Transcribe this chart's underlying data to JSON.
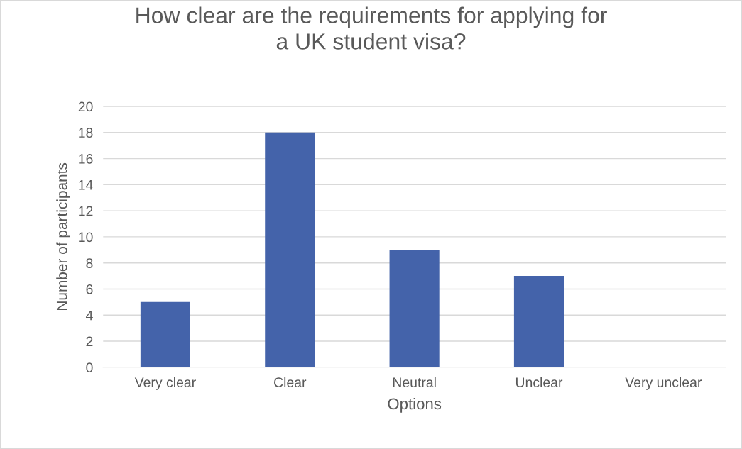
{
  "chart_data": {
    "type": "bar",
    "title": "How clear are the requirements for applying for\na UK student visa?",
    "xlabel": "Options",
    "ylabel": "Number of participants",
    "categories": [
      "Very clear",
      "Clear",
      "Neutral",
      "Unclear",
      "Very unclear"
    ],
    "values": [
      5,
      18,
      9,
      7,
      0
    ],
    "color": "#4463aa",
    "ylim": [
      0,
      20
    ],
    "yticks": [
      0,
      2,
      4,
      6,
      8,
      10,
      12,
      14,
      16,
      18,
      20
    ],
    "grid": "y",
    "legend": false
  }
}
